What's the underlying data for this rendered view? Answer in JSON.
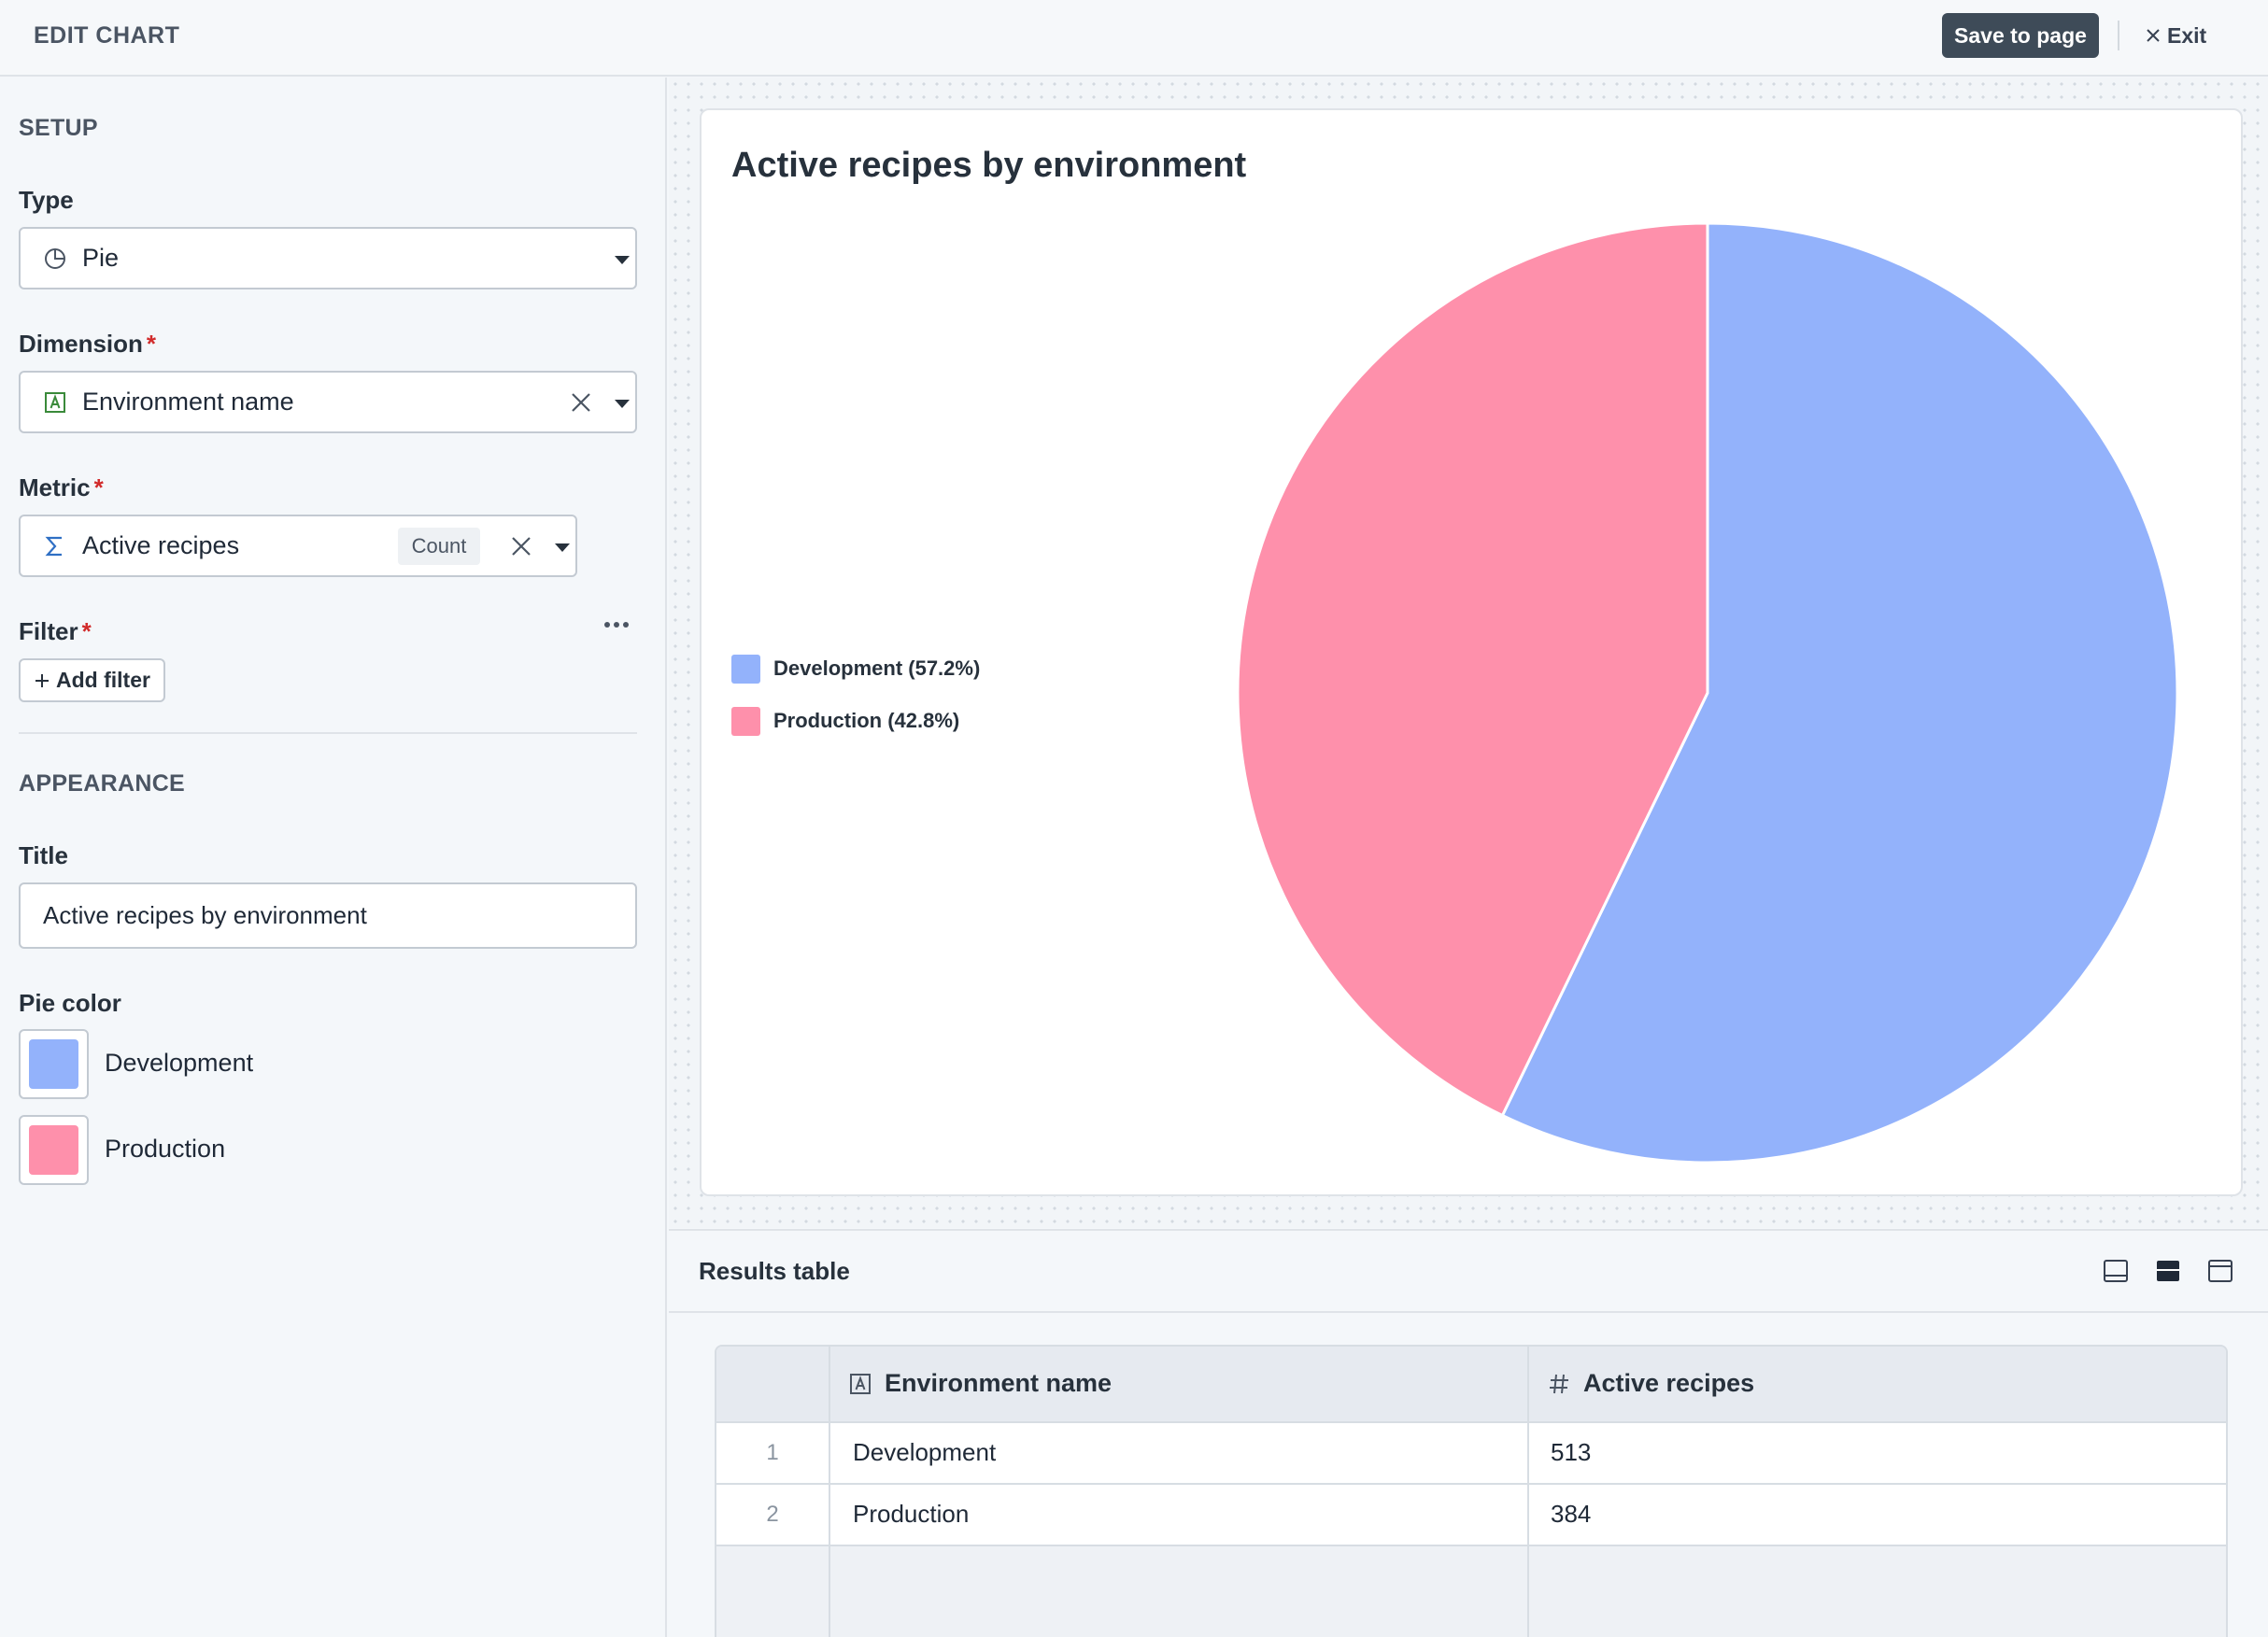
{
  "header": {
    "title": "EDIT CHART",
    "save_label": "Save to page",
    "exit_label": "Exit"
  },
  "setup": {
    "heading": "SETUP",
    "type_label": "Type",
    "type_value": "Pie",
    "dimension_label": "Dimension",
    "dimension_value": "Environment name",
    "metric_label": "Metric",
    "metric_value": "Active recipes",
    "metric_aggregation": "Count",
    "filter_label": "Filter",
    "add_filter_label": "Add filter",
    "required_mark": "*"
  },
  "appearance": {
    "heading": "APPEARANCE",
    "title_label": "Title",
    "title_value": "Active recipes by environment",
    "pie_color_label": "Pie color",
    "colors": [
      {
        "label": "Development",
        "color": "#93b2fb"
      },
      {
        "label": "Production",
        "color": "#fe90ab"
      }
    ]
  },
  "chart_data": {
    "type": "pie",
    "title": "Active recipes by environment",
    "categories": [
      "Development",
      "Production"
    ],
    "values": [
      513,
      384
    ],
    "legend": [
      "Development (57.2%)",
      "Production (42.8%)"
    ],
    "colors": [
      "#93b2fb",
      "#fe90ab"
    ],
    "legend_position": "left"
  },
  "results": {
    "title": "Results table",
    "columns": [
      "Environment name",
      "Active recipes"
    ],
    "rows": [
      {
        "num": "1",
        "environment": "Development",
        "count": "513"
      },
      {
        "num": "2",
        "environment": "Production",
        "count": "384"
      }
    ]
  },
  "icons": {
    "type": "pie-chart-icon",
    "dimension": "text-field-icon",
    "metric": "sigma-icon",
    "count_column": "hash-icon"
  }
}
